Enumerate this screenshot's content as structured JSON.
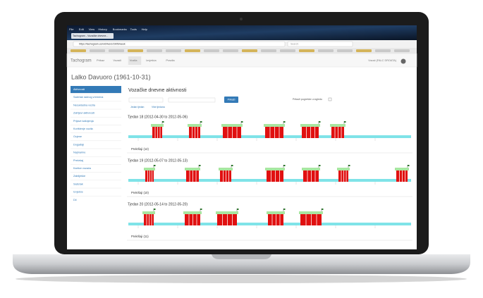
{
  "browser": {
    "menu": [
      "File",
      "Edit",
      "View",
      "History",
      "Bookmarks",
      "Tools",
      "Help"
    ],
    "tab": "Tachogram - Vozačke dnevne...",
    "url": "https://tachogram.com/drivers/1905/week",
    "search": "Search"
  },
  "nav": {
    "brand": "Tachogram",
    "items": [
      "Prikaz",
      "Vozači",
      "Vozila",
      "Izvješća",
      "Pravila"
    ],
    "user": "Vozač (FALC DROATA)"
  },
  "driver": "Lalko Davuoro (1961-10-31)",
  "sidebar": [
    "Aktivnosti",
    "Sažetak radnog vremena",
    "Nesukladna vozila",
    "Zahtjevi aktivnosti",
    "Prijave kašnjenja",
    "Korištenje vozila",
    "Ocjene",
    "Događaji",
    "Najmarine",
    "Prekršaj",
    "Kartice vozača",
    "Zabilješke",
    "Sažetak",
    "Izvješće",
    "Dil"
  ],
  "page": {
    "title": "Vozačke dnevne aktivnosti",
    "button": "Prikaži",
    "checkbox": "Prikaži pogreške u izgledu",
    "links": [
      "Jedan tjedan",
      "Više tjedana"
    ]
  },
  "weeks": [
    {
      "title": "Tjedan 18 (2012-04-30 to 2012-05-06)",
      "violations": "Prekršaji (12)"
    },
    {
      "title": "Tjedan 19 (2012-05-07 to 2012-05-13)",
      "violations": "Prekršaji (10)"
    },
    {
      "title": "Tjedan 20 (2012-05-14 to 2012-05-20)",
      "violations": "Prekršaji (11)"
    }
  ]
}
